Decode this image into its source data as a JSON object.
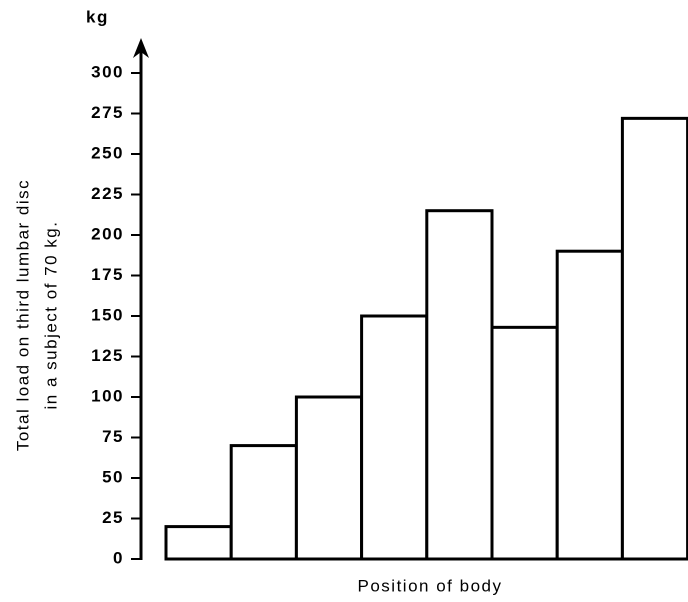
{
  "chart_data": {
    "type": "bar",
    "y_unit": "kg",
    "ylabel": [
      "Total load on third lumbar disc",
      "in a subject of 70 kg."
    ],
    "xlabel": "Position of body",
    "categories": [
      null,
      null,
      null,
      null,
      null,
      null,
      null,
      null
    ],
    "values": [
      20,
      70,
      100,
      150,
      215,
      143,
      190,
      272
    ],
    "color": "#ffffff",
    "ylim": [
      0,
      300
    ],
    "yticks": [
      0,
      25,
      50,
      75,
      100,
      125,
      150,
      175,
      200,
      225,
      250,
      275,
      300
    ]
  }
}
